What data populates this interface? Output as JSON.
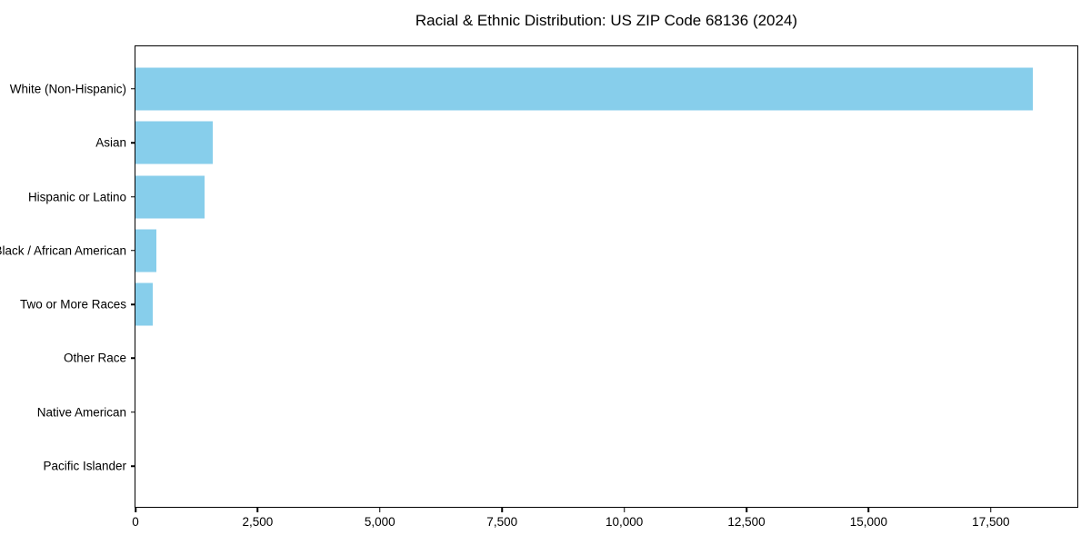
{
  "chart_data": {
    "type": "bar",
    "orientation": "horizontal",
    "title": "Racial & Ethnic Distribution: US ZIP Code 68136 (2024)",
    "categories": [
      "White (Non-Hispanic)",
      "Asian",
      "Hispanic or Latino",
      "Black / African American",
      "Two or More Races",
      "Other Race",
      "Native American",
      "Pacific Islander"
    ],
    "values": [
      18350,
      1580,
      1410,
      430,
      360,
      0,
      0,
      0
    ],
    "xlabel": "",
    "ylabel": "",
    "xlim": [
      0,
      19270
    ],
    "xticks": [
      0,
      2500,
      5000,
      7500,
      10000,
      12500,
      15000,
      17500
    ],
    "xtick_labels": [
      "0",
      "2,500",
      "5,000",
      "7,500",
      "10,000",
      "12,500",
      "15,000",
      "17,500"
    ],
    "legend": false,
    "grid": false,
    "bar_color": "#87ceeb"
  },
  "colors": {
    "bar": "#87ceeb",
    "axis": "#000000",
    "text": "#000000",
    "background": "#ffffff"
  }
}
